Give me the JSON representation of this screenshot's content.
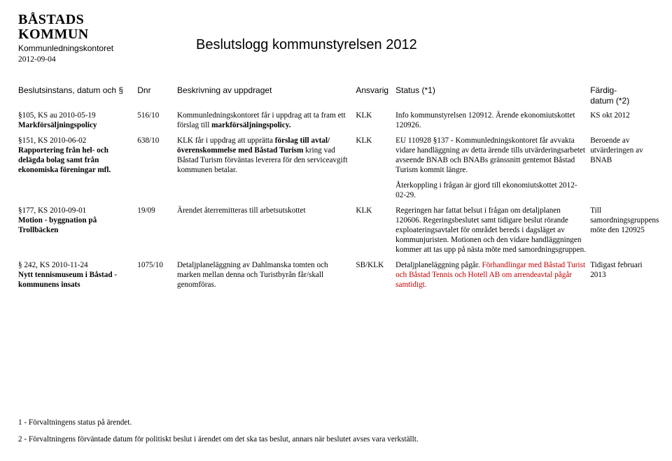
{
  "header": {
    "org_line1": "BÅSTADS",
    "org_line2": "KOMMUN",
    "department": "Kommunledningskontoret",
    "date": "2012-09-04",
    "title": "Beslutslogg kommunstyrelsen 2012"
  },
  "columns": {
    "instans": "Beslutsinstans, datum och §",
    "dnr": "Dnr",
    "beskr": "Beskrivning av uppdraget",
    "ansv": "Ansvarig",
    "status": "Status (*1)",
    "fardig_line1": "Färdig-",
    "fardig_line2": "datum (*2)"
  },
  "rows": [
    {
      "instans_line1": "§105, KS au 2010-05-19",
      "instans_bold": "Markförsäljningspolicy",
      "dnr": "516/10",
      "beskr_pre": "Kommunledningskontoret får i uppdrag att ta fram ett förslag till ",
      "beskr_bold": "markförsäljningspolicy.",
      "ansv": "KLK",
      "status": "Info kommunstyrelsen 120912. Ärende ekonomiutskottet 120926.",
      "fardig": "KS okt 2012"
    },
    {
      "instans_line1": "§151, KS 2010-06-02",
      "instans_bold": "Rapportering från hel- och delägda bolag samt från ekonomiska föreningar mfl.",
      "dnr": "638/10",
      "beskr_pre": "KLK får i uppdrag att upprätta ",
      "beskr_bold": "förslag till avtal/överenskommelse med Båstad Turism",
      "beskr_post": " kring vad Båstad Turism förväntas leverera för den serviceavgift kommunen betalar.",
      "ansv": "KLK",
      "status": "EU 110928 §137 - Kommunledningskontoret får avvakta vidare handläggning av detta ärende tills utvärderingsarbetet avseende BNAB och BNABs gränssnitt gentemot Båstad Turism kommit längre.",
      "fardig": "Beroende av utvärderingen av BNAB"
    }
  ],
  "interrow_status": "Återkoppling i frågan är gjord till ekonomiutskottet 2012-02-29.",
  "rows2": [
    {
      "instans_line1": "§177, KS 2010-09-01",
      "instans_bold": "Motion - byggnation på Trollbäcken",
      "dnr": "19/09",
      "beskr": "Ärendet återremitteras till arbetsutskottet",
      "ansv": "KLK",
      "status": "Regeringen har fattat belsut i frågan om detaljplanen 120606. Regeringsbeslutet samt tidigare beslut rörande exploateringsavtalet för området bereds i dagsläget av kommunjuristen. Motionen och den vidare handläggningen kommer att tas upp på nästa möte med samordningsgruppen.",
      "fardig": "Till samordningsgruppens möte den 120925"
    },
    {
      "instans_line1": "§ 242, KS 2010-11-24",
      "instans_bold": "Nytt tennismuseum i Båstad - kommunens insats",
      "dnr": "1075/10",
      "beskr": "Detaljplaneläggning av Dahlmanska tomten och marken mellan denna och Turistbyrån får/skall genomföras.",
      "ansv": "SB/KLK",
      "status_pre": "Detaljplaneläggning pågår. ",
      "status_red": "Förhandlingar med Båstad Turist och Båstad Tennis och Hotell AB om arrendeavtal pågår samtidigt.",
      "fardig": "Tidigast februari 2013"
    }
  ],
  "footnotes": {
    "f1": "1 - Förvaltningens status på ärendet.",
    "f2": "2 - Förvaltningens förväntade datum för politiskt beslut i ärendet om det ska tas beslut, annars när beslutet avses vara verkställt."
  },
  "colors": {
    "red": "#c00000"
  }
}
